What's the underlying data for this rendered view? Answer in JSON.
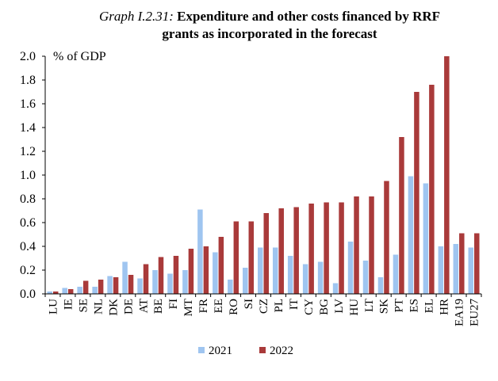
{
  "chart_data": {
    "type": "bar",
    "title_prefix": "Graph I.2.31:",
    "title_line1": "Expenditure and other costs financed by RRF",
    "title_line2": "grants as incorporated in the forecast",
    "ylabel": "% of GDP",
    "xlabel": "",
    "ylim": [
      0,
      2.0
    ],
    "yticks": [
      "0.0",
      "0.2",
      "0.4",
      "0.6",
      "0.8",
      "1.0",
      "1.2",
      "1.4",
      "1.6",
      "1.8",
      "2.0"
    ],
    "grid": false,
    "legend_position": "bottom",
    "categories": [
      "LU",
      "IE",
      "SE",
      "NL",
      "DK",
      "DE",
      "AT",
      "BE",
      "FI",
      "MT",
      "FR",
      "EE",
      "RO",
      "SI",
      "CZ",
      "PL",
      "IT",
      "CY",
      "BG",
      "LV",
      "HU",
      "LT",
      "SK",
      "PT",
      "ES",
      "EL",
      "HR",
      "EA19",
      "EU27"
    ],
    "series": [
      {
        "name": "2021",
        "color": "#9fc5f0",
        "values": [
          0.02,
          0.05,
          0.06,
          0.06,
          0.15,
          0.27,
          0.13,
          0.2,
          0.17,
          0.2,
          0.71,
          0.35,
          0.12,
          0.22,
          0.39,
          0.39,
          0.32,
          0.25,
          0.27,
          0.09,
          0.44,
          0.28,
          0.14,
          0.33,
          0.99,
          0.93,
          0.4,
          0.42,
          0.39
        ]
      },
      {
        "name": "2022",
        "color": "#a93a3a",
        "values": [
          0.02,
          0.04,
          0.11,
          0.12,
          0.14,
          0.16,
          0.25,
          0.31,
          0.32,
          0.38,
          0.4,
          0.48,
          0.61,
          0.61,
          0.68,
          0.72,
          0.73,
          0.76,
          0.77,
          0.77,
          0.82,
          0.82,
          0.95,
          1.32,
          1.7,
          1.76,
          2.0,
          0.51,
          0.51
        ]
      }
    ]
  }
}
